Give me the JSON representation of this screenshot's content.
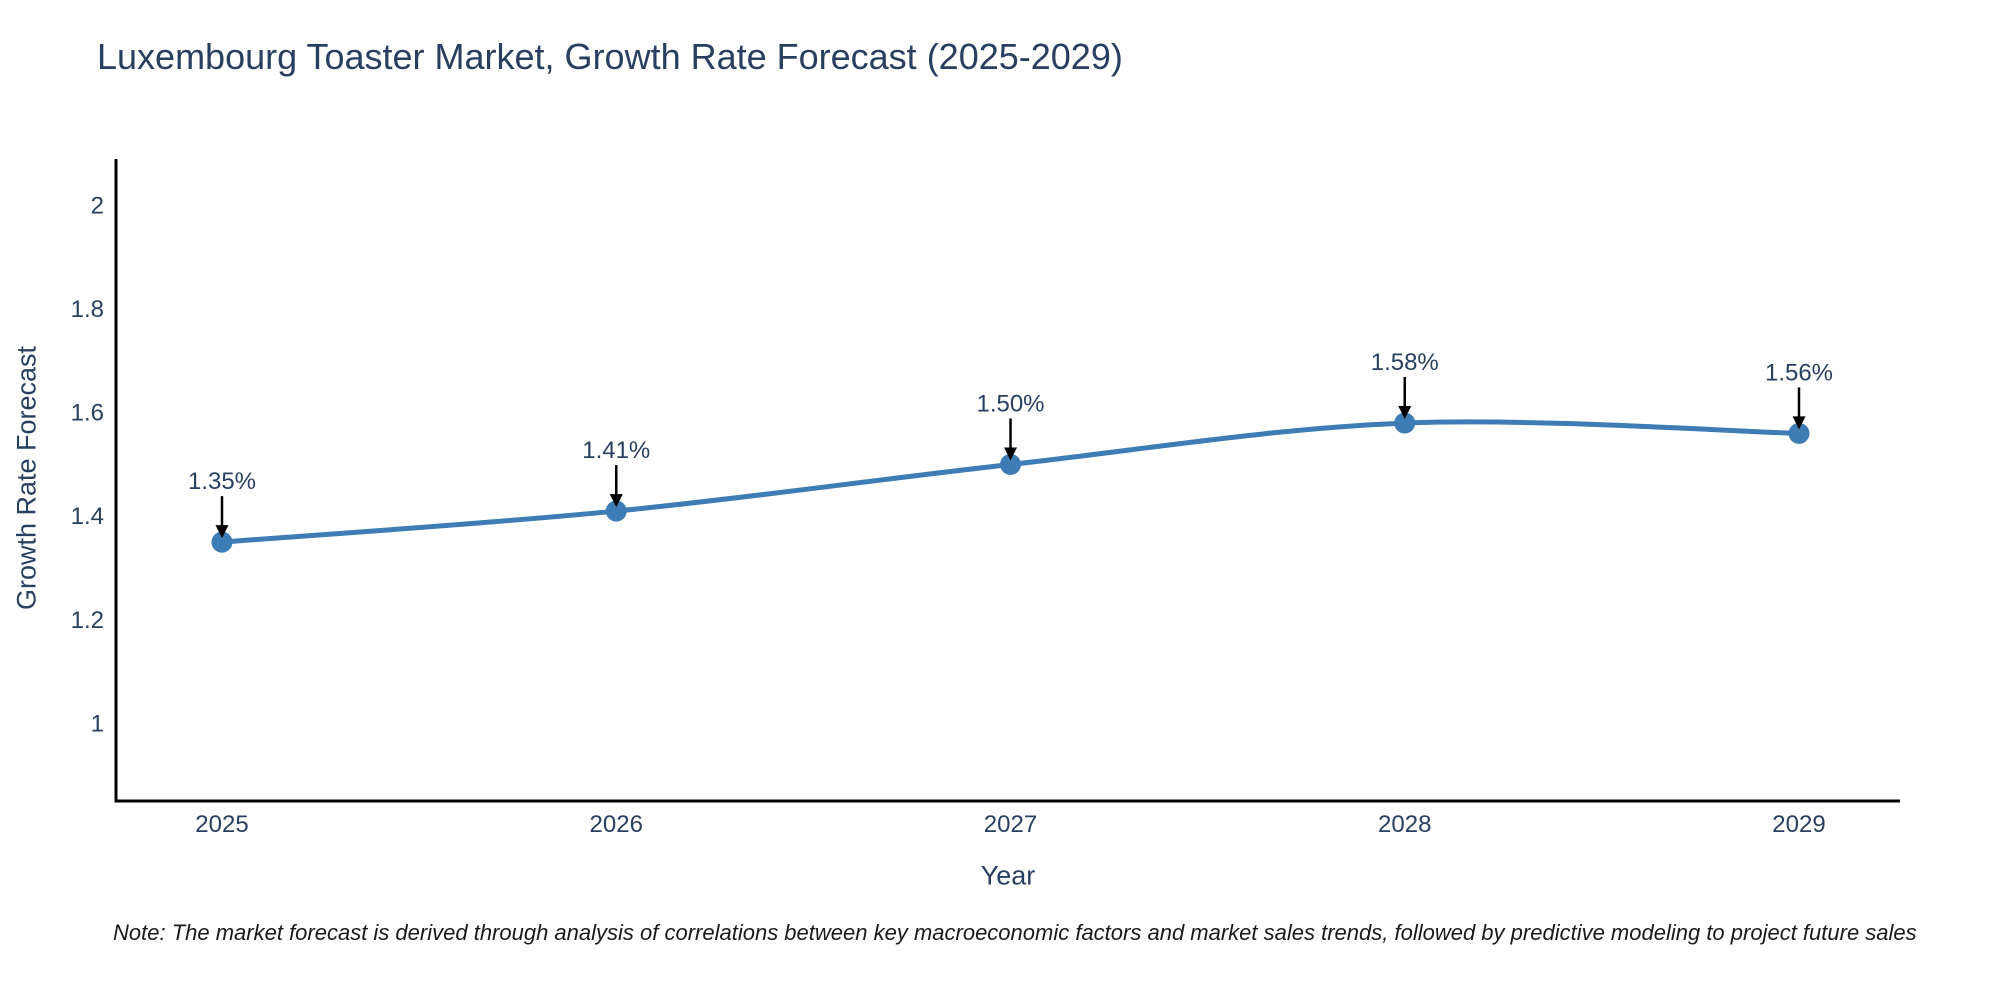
{
  "note": "Note: The market forecast is derived through analysis of correlations between key macroeconomic factors and market sales trends, followed by predictive modeling to project future sales",
  "chart_data": {
    "type": "line",
    "title": "Luxembourg Toaster Market, Growth Rate Forecast (2025-2029)",
    "xlabel": "Year",
    "ylabel": "Growth Rate Forecast",
    "categories": [
      "2025",
      "2026",
      "2027",
      "2028",
      "2029"
    ],
    "series": [
      {
        "name": "Growth Rate Forecast",
        "values": [
          1.35,
          1.41,
          1.5,
          1.58,
          1.56
        ],
        "point_labels": [
          "1.35%",
          "1.41%",
          "1.50%",
          "1.58%",
          "1.56%"
        ]
      }
    ],
    "line_shape": "spline",
    "markers": true,
    "annotations_arrows": true,
    "yticks": [
      1,
      1.2,
      1.4,
      1.6,
      1.8,
      2
    ],
    "ytick_labels": [
      "1",
      "1.2",
      "1.4",
      "1.6",
      "1.8",
      "2"
    ],
    "ylim": [
      0.85,
      2.09
    ],
    "grid": false,
    "legend": false,
    "colors": {
      "line": "#3d7cb4",
      "marker": "#3d7cb4",
      "arrow": "#000000",
      "axis": "#000000",
      "tick_text": "#2a3f5f",
      "annotation_text": "#2a3f5f",
      "title_text": "#2a3f5f",
      "note_text": "#1a1a1a",
      "background": "#ffffff"
    }
  }
}
